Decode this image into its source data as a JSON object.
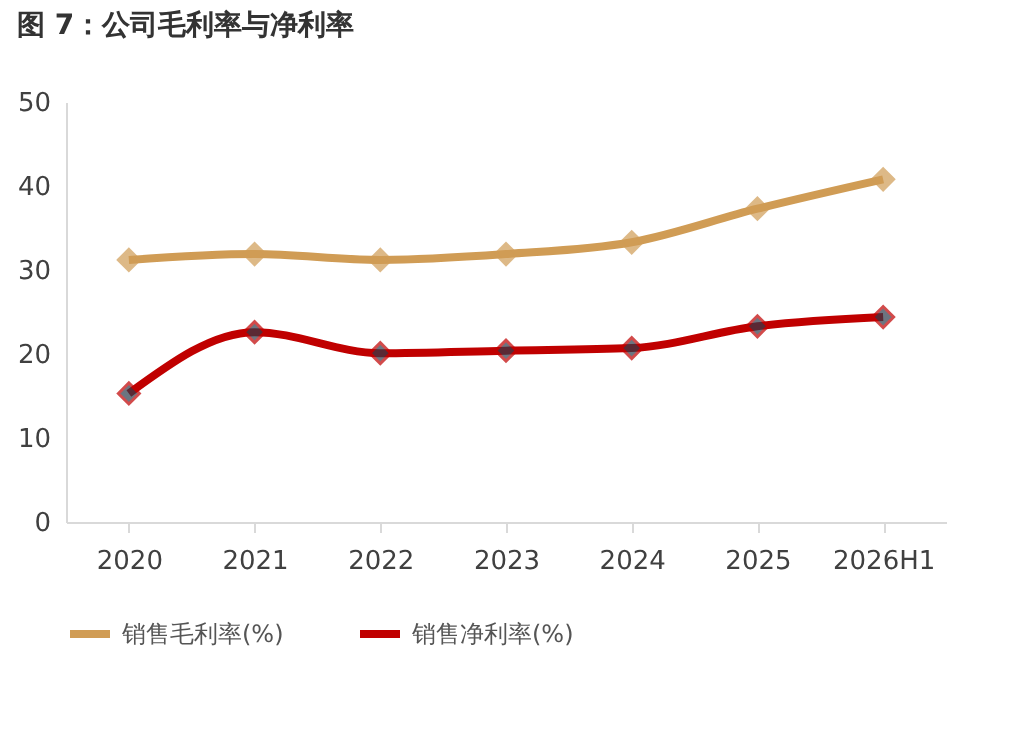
{
  "chart_data": {
    "type": "line",
    "title": "图 7：公司毛利率与净利率",
    "categories": [
      "2020",
      "2021",
      "2022",
      "2023",
      "2024",
      "2025",
      "2026H1"
    ],
    "series": [
      {
        "name": "销售毛利率(%)",
        "color": "#d09c55",
        "values": [
          31.2,
          31.9,
          31.2,
          31.9,
          33.3,
          37.3,
          40.8
        ]
      },
      {
        "name": "销售净利率(%)",
        "color": "#c00000",
        "values": [
          15.3,
          22.6,
          20.1,
          20.4,
          20.7,
          23.3,
          24.4
        ]
      }
    ],
    "ylim": [
      0,
      50
    ],
    "yticks": [
      0,
      10,
      20,
      30,
      40,
      50
    ],
    "grid": false,
    "legend": "bottom",
    "marker": "diamond",
    "line_style": "solid"
  }
}
